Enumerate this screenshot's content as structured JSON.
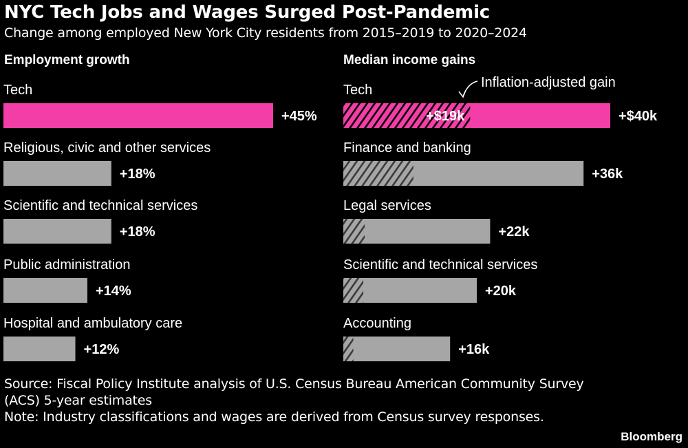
{
  "title": "NYC Tech Jobs and Wages Surged Post-Pandemic",
  "subtitle": "Change among employed New York City residents from 2015–2019 to 2020–2024",
  "colors": {
    "background": "#000000",
    "highlight": "#f23ea6",
    "bar": "#a6a6a6",
    "hatch": "#3a3a3a",
    "text": "#ffffff"
  },
  "chart_data": [
    {
      "type": "bar",
      "orientation": "horizontal",
      "title": "Employment growth",
      "unit": "%",
      "categories": [
        "Tech",
        "Religious, civic and other services",
        "Scientific and technical services",
        "Public administration",
        "Hospital and ambulatory care"
      ],
      "values": [
        45,
        18,
        18,
        14,
        12
      ],
      "labels": [
        "+45%",
        "+18%",
        "+18%",
        "+14%",
        "+12%"
      ],
      "highlight": "Tech",
      "xlim": [
        0,
        45
      ]
    },
    {
      "type": "bar",
      "orientation": "horizontal",
      "title": "Median income gains",
      "unit": "$ thousands",
      "categories": [
        "Tech",
        "Finance and banking",
        "Legal services",
        "Scientific and technical services",
        "Accounting"
      ],
      "series": [
        {
          "values": [
            40,
            36,
            22,
            20,
            16
          ]
        },
        {
          "name": "Inflation-adjusted gain",
          "values": [
            19,
            10.5,
            3.2,
            3,
            1.5
          ]
        }
      ],
      "labels": [
        "+$40k",
        "+36k",
        "+22k",
        "+20k",
        "+16k"
      ],
      "inner_labels": [
        "+$19k",
        "",
        "",
        "",
        ""
      ],
      "annotation": "Inflation-adjusted gain",
      "highlight": "Tech",
      "xlim": [
        0,
        40
      ]
    }
  ],
  "footer": {
    "source": "Source: Fiscal Policy Institute analysis of U.S. Census Bureau American Community Survey (ACS) 5-year estimates",
    "note": "Note: Industry classifications and wages are derived from Census survey responses."
  },
  "brand": "Bloomberg"
}
